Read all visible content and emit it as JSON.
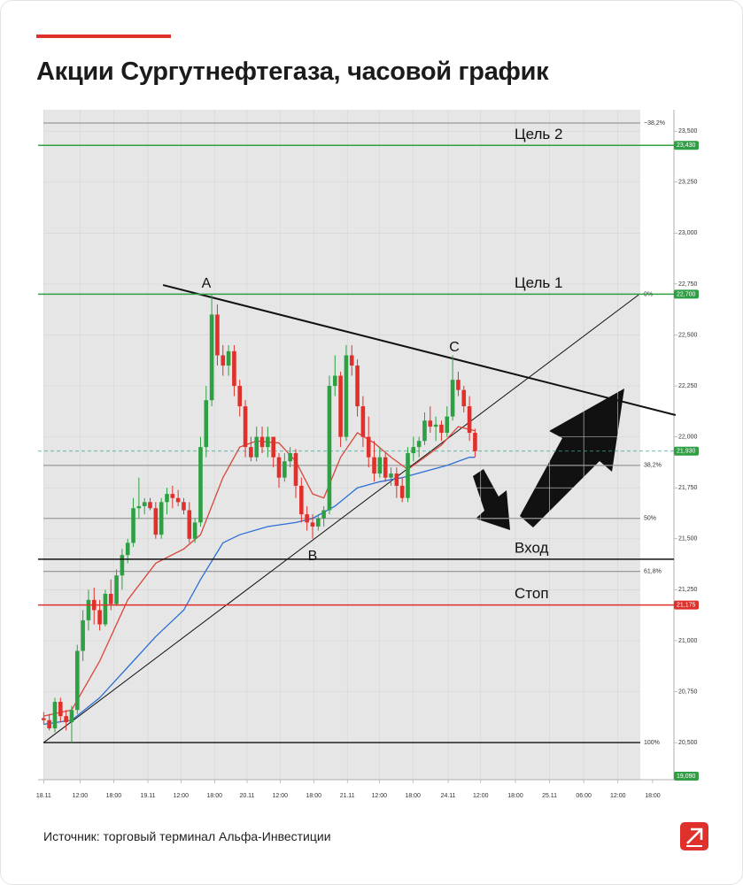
{
  "title": "Акции Сургутнефтегаза, часовой график",
  "source": "Источник: торговый терминал Альфа-Инвестиции",
  "chart_data": {
    "type": "candlestick",
    "xlim": [
      -1,
      112.5
    ],
    "ylim": [
      20318,
      23605
    ],
    "grid": true,
    "xticks": [
      {
        "value": 0,
        "label": "18.11"
      },
      {
        "value": 6.5,
        "label": "12:00"
      },
      {
        "value": 12.5,
        "label": "18:00"
      },
      {
        "value": 18.6,
        "label": "19.11"
      },
      {
        "value": 24.5,
        "label": "12:00"
      },
      {
        "value": 30.5,
        "label": "18:00"
      },
      {
        "value": 36.3,
        "label": "20.11"
      },
      {
        "value": 42.2,
        "label": "12:00"
      },
      {
        "value": 48.2,
        "label": "18:00"
      },
      {
        "value": 54.2,
        "label": "21.11"
      },
      {
        "value": 59.9,
        "label": "12:00"
      },
      {
        "value": 65.9,
        "label": "18:00"
      },
      {
        "value": 72.2,
        "label": "24.11"
      },
      {
        "value": 78,
        "label": "12:00"
      },
      {
        "value": 84.2,
        "label": "18:00"
      },
      {
        "value": 90.3,
        "label": "25.11"
      },
      {
        "value": 96.4,
        "label": "06:00"
      },
      {
        "value": 102.5,
        "label": "12:00"
      },
      {
        "value": 108.7,
        "label": "18:00"
      }
    ],
    "yticks": [
      {
        "value": 20500,
        "label": "20,500"
      },
      {
        "value": 20750,
        "label": "20,750"
      },
      {
        "value": 21000,
        "label": "21,000"
      },
      {
        "value": 21250,
        "label": "21,250"
      },
      {
        "value": 21500,
        "label": "21,500"
      },
      {
        "value": 21750,
        "label": "21,750"
      },
      {
        "value": 22000,
        "label": "22,000"
      },
      {
        "value": 22250,
        "label": "22,250"
      },
      {
        "value": 22500,
        "label": "22,500"
      },
      {
        "value": 22750,
        "label": "22,750"
      },
      {
        "value": 23000,
        "label": "23,000"
      },
      {
        "value": 23250,
        "label": "23,250"
      },
      {
        "value": 23500,
        "label": "23,500"
      }
    ],
    "up_color": "#2ea043",
    "down_color": "#e0302b",
    "ohlc": [
      [
        20620,
        20650,
        20590,
        20610
      ],
      [
        20610,
        20640,
        20560,
        20570
      ],
      [
        20570,
        20720,
        20550,
        20700
      ],
      [
        20700,
        20720,
        20600,
        20630
      ],
      [
        20630,
        20660,
        20560,
        20600
      ],
      [
        20600,
        20680,
        20500,
        20660
      ],
      [
        20660,
        20980,
        20640,
        20950
      ],
      [
        20950,
        21150,
        20900,
        21100
      ],
      [
        21100,
        21250,
        21050,
        21200
      ],
      [
        21200,
        21260,
        21080,
        21150
      ],
      [
        21150,
        21200,
        21050,
        21080
      ],
      [
        21080,
        21250,
        21070,
        21230
      ],
      [
        21230,
        21300,
        21150,
        21180
      ],
      [
        21180,
        21350,
        21170,
        21320
      ],
      [
        21320,
        21450,
        21250,
        21420
      ],
      [
        21420,
        21500,
        21380,
        21480
      ],
      [
        21480,
        21700,
        21460,
        21650
      ],
      [
        21650,
        21800,
        21600,
        21660
      ],
      [
        21660,
        21700,
        21620,
        21680
      ],
      [
        21680,
        21700,
        21640,
        21650
      ],
      [
        21650,
        21680,
        21500,
        21520
      ],
      [
        21520,
        21700,
        21500,
        21680
      ],
      [
        21680,
        21750,
        21620,
        21720
      ],
      [
        21720,
        21760,
        21650,
        21700
      ],
      [
        21700,
        21740,
        21660,
        21680
      ],
      [
        21680,
        21700,
        21620,
        21640
      ],
      [
        21640,
        21680,
        21480,
        21500
      ],
      [
        21500,
        21600,
        21480,
        21580
      ],
      [
        21580,
        22000,
        21560,
        21950
      ],
      [
        21950,
        22250,
        21900,
        22180
      ],
      [
        22180,
        22700,
        22150,
        22600
      ],
      [
        22600,
        22650,
        22350,
        22400
      ],
      [
        22400,
        22450,
        22300,
        22350
      ],
      [
        22350,
        22450,
        22300,
        22420
      ],
      [
        22420,
        22450,
        22200,
        22250
      ],
      [
        22250,
        22280,
        22100,
        22150
      ],
      [
        22150,
        22180,
        21900,
        21950
      ],
      [
        21950,
        22000,
        21880,
        21900
      ],
      [
        21900,
        22050,
        21880,
        22000
      ],
      [
        22000,
        22050,
        21920,
        21950
      ],
      [
        21950,
        22050,
        21900,
        22000
      ],
      [
        22000,
        22000,
        21850,
        21900
      ],
      [
        21900,
        21920,
        21750,
        21800
      ],
      [
        21800,
        21920,
        21780,
        21880
      ],
      [
        21880,
        21950,
        21850,
        21920
      ],
      [
        21920,
        21940,
        21700,
        21760
      ],
      [
        21760,
        21800,
        21580,
        21620
      ],
      [
        21620,
        21660,
        21540,
        21580
      ],
      [
        21580,
        21620,
        21500,
        21560
      ],
      [
        21560,
        21620,
        21540,
        21600
      ],
      [
        21600,
        21660,
        21560,
        21640
      ],
      [
        21640,
        22300,
        21620,
        22250
      ],
      [
        22250,
        22400,
        22200,
        22300
      ],
      [
        22300,
        22320,
        21950,
        22000
      ],
      [
        22000,
        22450,
        21980,
        22400
      ],
      [
        22400,
        22450,
        22300,
        22350
      ],
      [
        22350,
        22380,
        22100,
        22150
      ],
      [
        22150,
        22200,
        21950,
        22000
      ],
      [
        22000,
        22100,
        21850,
        21900
      ],
      [
        21900,
        21980,
        21780,
        21820
      ],
      [
        21820,
        21950,
        21800,
        21900
      ],
      [
        21900,
        21920,
        21780,
        21800
      ],
      [
        21800,
        21850,
        21760,
        21820
      ],
      [
        21820,
        21850,
        21700,
        21760
      ],
      [
        21760,
        21800,
        21680,
        21700
      ],
      [
        21700,
        21950,
        21680,
        21920
      ],
      [
        21920,
        22000,
        21880,
        21950
      ],
      [
        21950,
        22000,
        21900,
        21980
      ],
      [
        21980,
        22120,
        21960,
        22080
      ],
      [
        22080,
        22150,
        22020,
        22050
      ],
      [
        22050,
        22100,
        21980,
        22060
      ],
      [
        22060,
        22080,
        21980,
        22020
      ],
      [
        22020,
        22150,
        22000,
        22100
      ],
      [
        22100,
        22400,
        22080,
        22280
      ],
      [
        22280,
        22320,
        22200,
        22230
      ],
      [
        22230,
        22250,
        22120,
        22150
      ],
      [
        22150,
        22200,
        21980,
        22020
      ],
      [
        22020,
        22040,
        21900,
        21930
      ]
    ],
    "moving_averages": [
      {
        "color": "#d9463a",
        "x": [
          0,
          5,
          10,
          15,
          20,
          25,
          28,
          32,
          35,
          38,
          42,
          45,
          48,
          50,
          53,
          56,
          59,
          62,
          65,
          68,
          71,
          74,
          77
        ],
        "values": [
          20630,
          20660,
          20900,
          21200,
          21380,
          21450,
          21520,
          21800,
          21950,
          21980,
          21970,
          21880,
          21720,
          21700,
          21900,
          22020,
          21970,
          21900,
          21840,
          21900,
          21960,
          22050,
          22030
        ]
      },
      {
        "color": "#2b6fd6",
        "x": [
          0,
          5,
          10,
          15,
          20,
          25,
          28,
          32,
          35,
          40,
          45,
          48,
          52,
          56,
          60,
          64,
          68,
          72,
          76,
          77
        ],
        "values": [
          20590,
          20610,
          20720,
          20870,
          21020,
          21150,
          21300,
          21480,
          21520,
          21560,
          21580,
          21600,
          21660,
          21750,
          21780,
          21800,
          21830,
          21860,
          21900,
          21900
        ]
      }
    ],
    "levels": [
      {
        "label": "Цель 2",
        "value": 23430,
        "value_label": "23,430",
        "color": "#2ea043"
      },
      {
        "label": "Цель 1",
        "value": 22700,
        "value_label": "22,700",
        "color": "#2ea043"
      },
      {
        "label": "Вход",
        "value": 21400,
        "color": "#111111"
      },
      {
        "label": "Стоп",
        "value": 21175,
        "value_label": "21,175",
        "color": "#e0302b"
      }
    ],
    "fib_levels": [
      {
        "value": 23540,
        "label": "−38,2%"
      },
      {
        "value": 22700,
        "label": "0%"
      },
      {
        "value": 21860,
        "label": "38,2%"
      },
      {
        "value": 21600,
        "label": "50%"
      },
      {
        "value": 21340,
        "label": "61,8%"
      },
      {
        "value": 20500,
        "label": "100%"
      }
    ],
    "last_price": {
      "value": 21930,
      "label": "21,930",
      "color": "#2ea043"
    },
    "offscale_badge": "19,090",
    "trendlines": [
      {
        "x": [
          21.3,
          112.8
        ],
        "values": [
          22745,
          22107
        ],
        "color": "#111111"
      },
      {
        "x": [
          0,
          106.2
        ],
        "values": [
          20500,
          22697
        ],
        "color": "#111111"
      }
    ],
    "annotations": [
      "A",
      "B",
      "C"
    ]
  }
}
